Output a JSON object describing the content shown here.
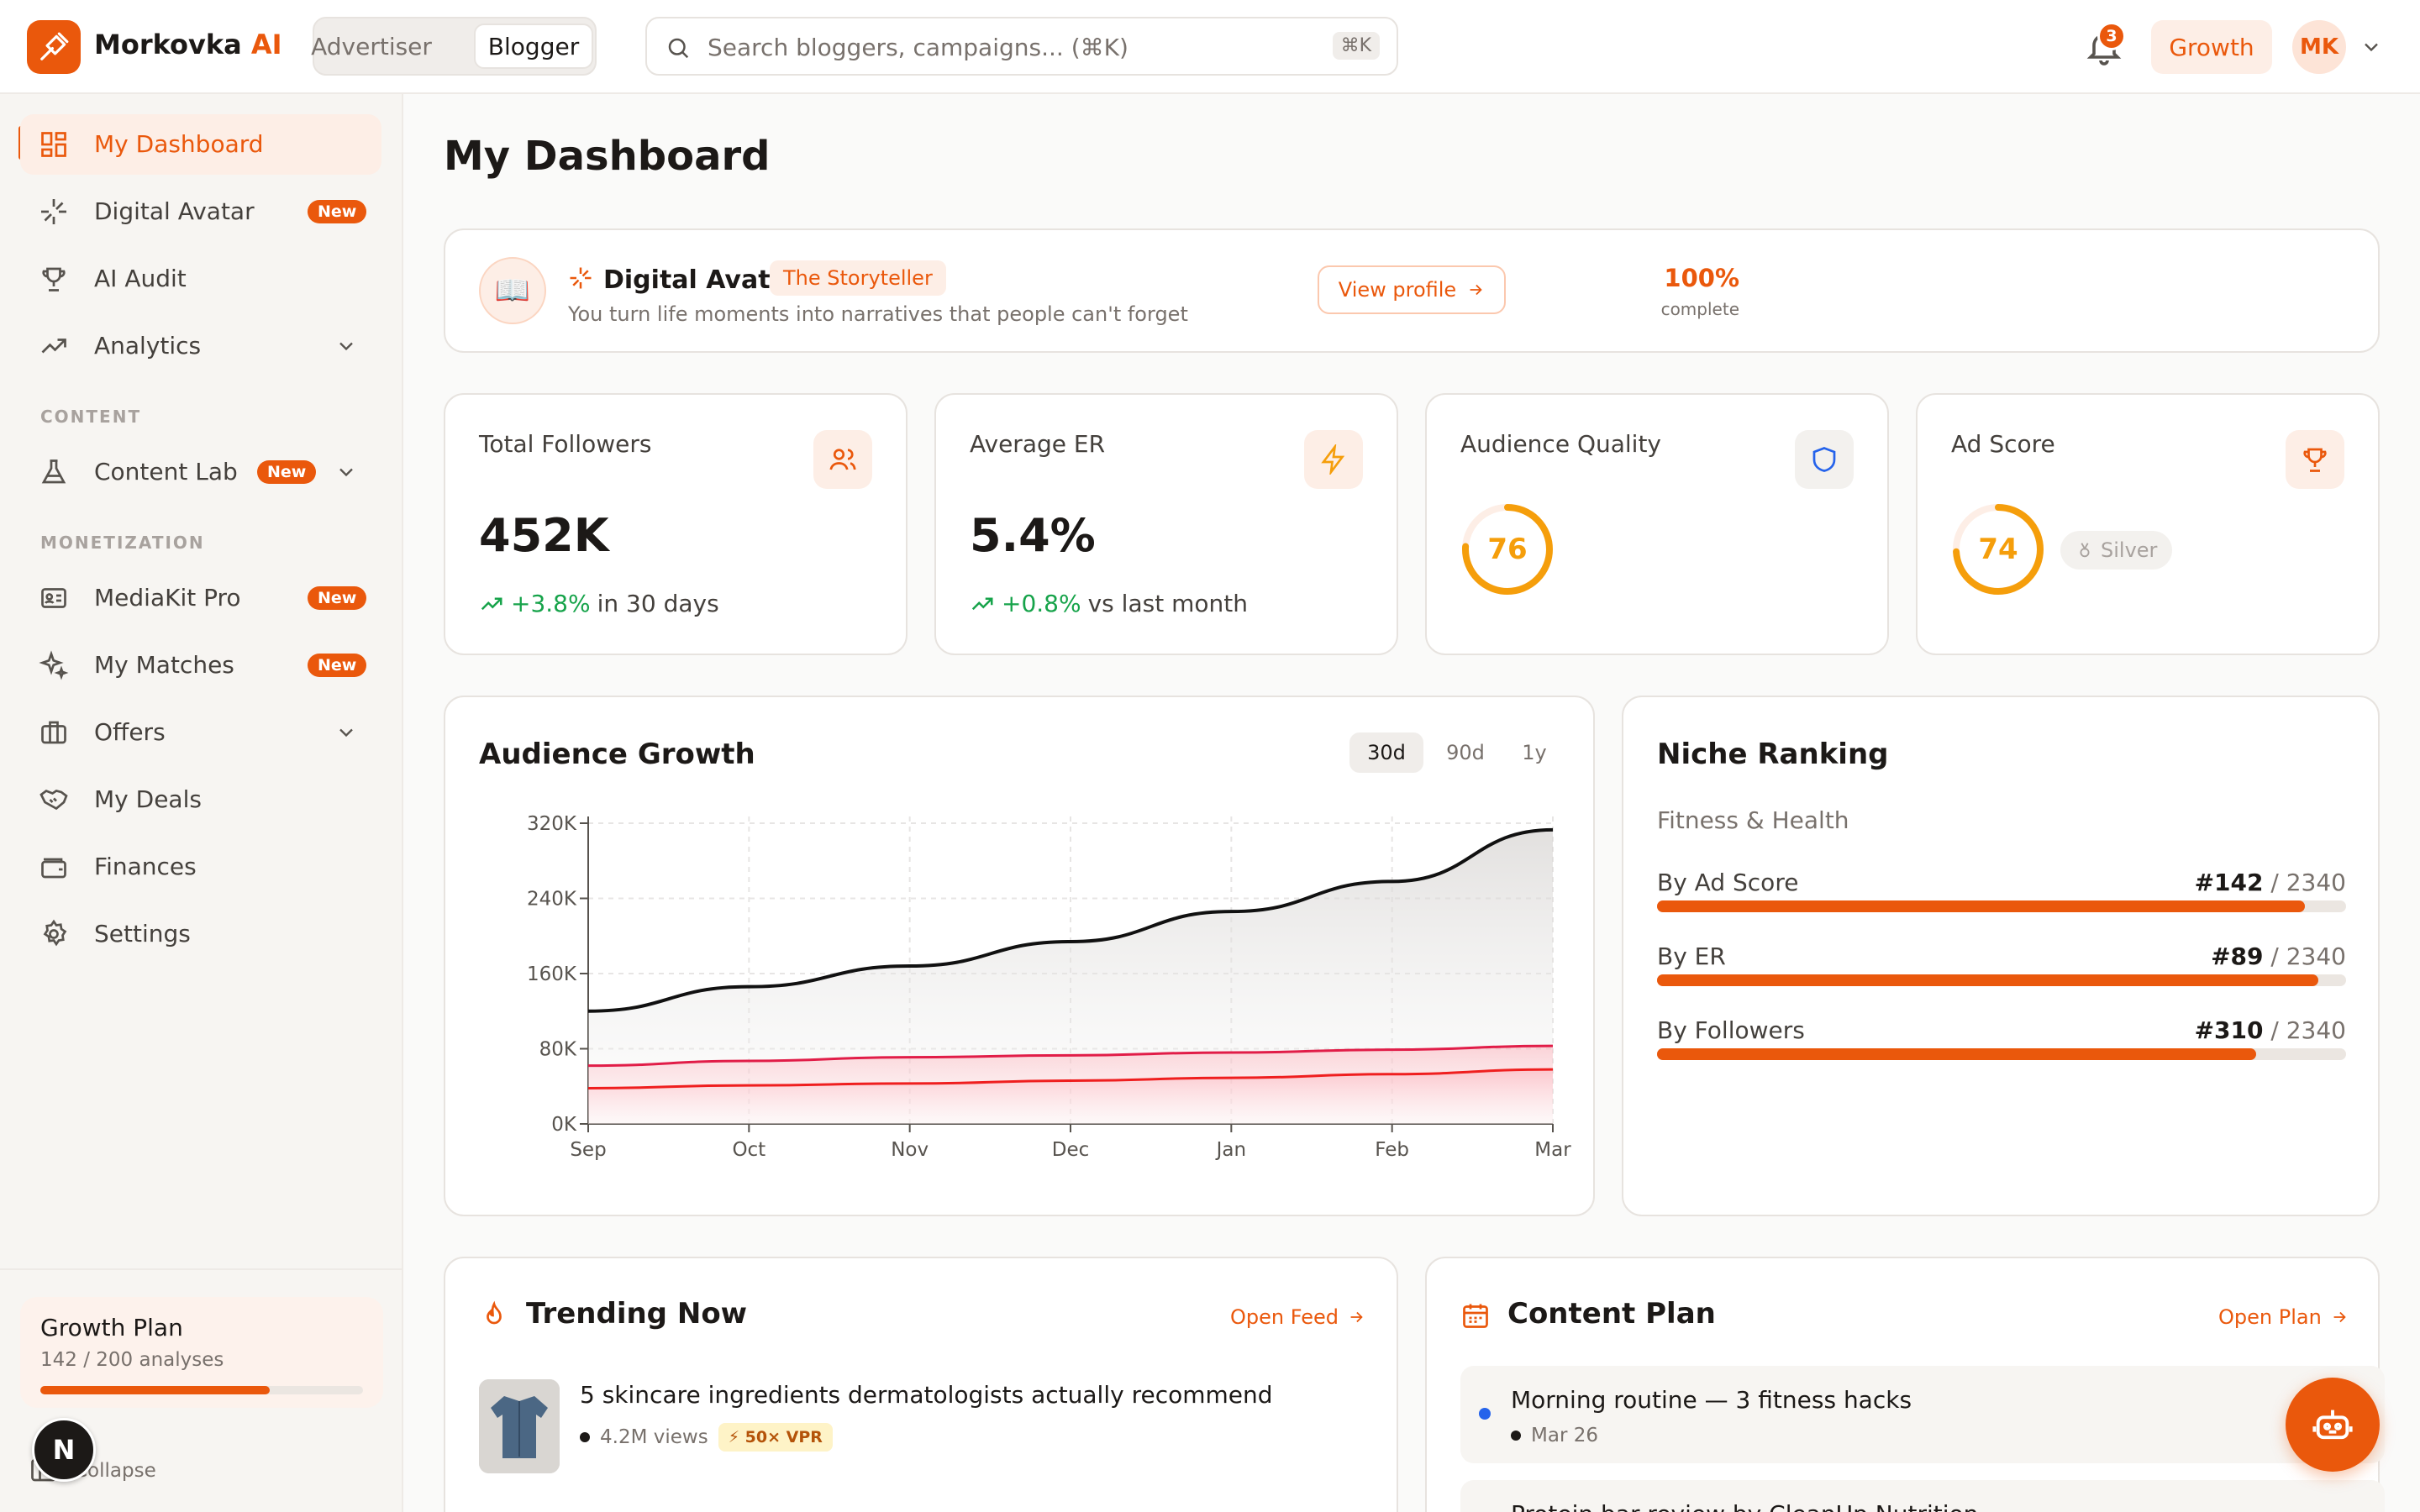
{
  "brand": {
    "name": "Morkovka",
    "ai": "AI"
  },
  "mode_switch": {
    "options": [
      "Advertiser",
      "Blogger"
    ],
    "active": "Blogger"
  },
  "search": {
    "placeholder": "Search bloggers, campaigns... (⌘K)",
    "shortcut": "⌘K"
  },
  "header": {
    "notifications": "3",
    "plan": "Growth",
    "user_initials": "MK"
  },
  "sidebar": {
    "items": [
      {
        "label": "My Dashboard",
        "icon": "grid-icon"
      },
      {
        "label": "Digital Avatar",
        "icon": "sparkle-icon",
        "badge": "New"
      },
      {
        "label": "AI Audit",
        "icon": "trophy-icon"
      },
      {
        "label": "Analytics",
        "icon": "trend-icon"
      },
      {
        "label": "Content Lab",
        "icon": "flask-icon",
        "badge": "New"
      },
      {
        "label": "MediaKit Pro",
        "icon": "id-card-icon",
        "badge": "New"
      },
      {
        "label": "My Matches",
        "icon": "sparkles-icon",
        "badge": "New"
      },
      {
        "label": "Offers",
        "icon": "briefcase-icon"
      },
      {
        "label": "My Deals",
        "icon": "handshake-icon"
      },
      {
        "label": "Finances",
        "icon": "wallet-icon"
      },
      {
        "label": "Settings",
        "icon": "gear-icon"
      }
    ],
    "section_content": "CONTENT",
    "section_monetization": "MONETIZATION",
    "plan": {
      "title": "Growth Plan",
      "usage": "142 / 200 analyses",
      "progress": 0.71
    },
    "collapse": "Collapse",
    "n_badge": "N"
  },
  "page": {
    "title": "My Dashboard"
  },
  "avatar_card": {
    "title": "Digital Avatar",
    "tag": "The Storyteller",
    "subtitle": "You turn life moments into narratives that people can't forget",
    "percent": "100%",
    "percent_label": "complete",
    "button": "View profile",
    "emoji": "📖"
  },
  "stats": {
    "followers": {
      "label": "Total Followers",
      "value": "452K",
      "delta": "+3.8%",
      "delta_text": "in 30 days"
    },
    "er": {
      "label": "Average ER",
      "value": "5.4%",
      "delta": "+0.8%",
      "delta_text": "vs last month"
    },
    "quality": {
      "label": "Audience Quality",
      "value": "76",
      "score": 76
    },
    "ad_score": {
      "label": "Ad Score",
      "value": "74",
      "score": 74,
      "tier": "Silver"
    }
  },
  "audience_growth": {
    "title": "Audience Growth",
    "ranges": [
      "30d",
      "90d",
      "1y"
    ],
    "active_range": "30d"
  },
  "chart_data": {
    "type": "area",
    "title": "Audience Growth",
    "categories": [
      "Sep",
      "Oct",
      "Nov",
      "Dec",
      "Jan",
      "Feb",
      "Mar"
    ],
    "y_ticks": [
      "0K",
      "80K",
      "160K",
      "240K",
      "320K"
    ],
    "ylim": [
      0,
      320000
    ],
    "grid": true,
    "series": [
      {
        "color": "#111111",
        "values": [
          120000,
          146000,
          168000,
          194000,
          226000,
          258000,
          313000
        ]
      },
      {
        "color": "#e11d48",
        "values": [
          62000,
          67000,
          71000,
          73000,
          76000,
          79000,
          83000
        ]
      },
      {
        "color": "#ef1f1f",
        "values": [
          38000,
          41000,
          43000,
          46000,
          49000,
          53000,
          58000
        ]
      }
    ]
  },
  "niche": {
    "title": "Niche Ranking",
    "category": "Fitness & Health",
    "rows": [
      {
        "label": "By Ad Score",
        "rank": "#142",
        "total": " / 2340",
        "fill": 0.94
      },
      {
        "label": "By ER",
        "rank": "#89",
        "total": " / 2340",
        "fill": 0.96
      },
      {
        "label": "By Followers",
        "rank": "#310",
        "total": " / 2340",
        "fill": 0.87
      }
    ]
  },
  "trending": {
    "title": "Trending Now",
    "link": "Open Feed",
    "item": {
      "title": "5 skincare ingredients dermatologists actually recommend",
      "views": "4.2M views",
      "vpr": "⚡ 50× VPR"
    }
  },
  "content_plan": {
    "title": "Content Plan",
    "link": "Open Plan",
    "items": [
      {
        "title": "Morning routine — 3 fitness hacks",
        "date": "Mar 26"
      },
      {
        "title": "Protein bar review by CleanUp Nutrition",
        "date": ""
      }
    ]
  },
  "colors": {
    "accent": "#ea580c",
    "success": "#16a34a",
    "ring": "#f59e0b"
  }
}
